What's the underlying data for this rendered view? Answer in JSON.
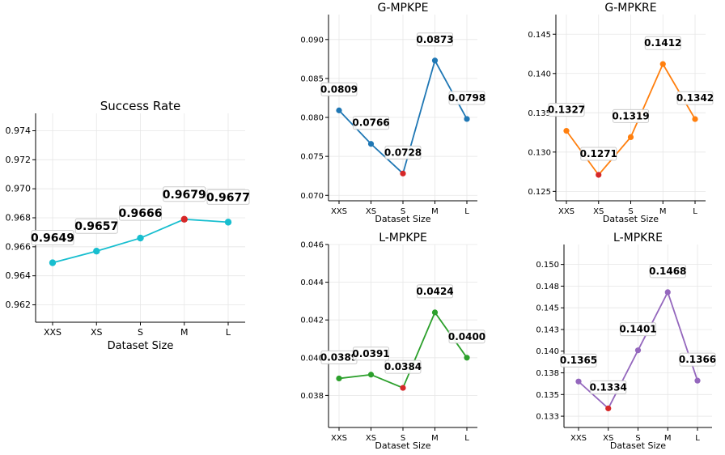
{
  "chart_data": [
    {
      "type": "line",
      "title": "Success Rate",
      "xlabel": "Dataset Size",
      "categories": [
        "XXS",
        "XS",
        "S",
        "M",
        "L"
      ],
      "values": [
        0.9649,
        0.9657,
        0.9666,
        0.9679,
        0.9677
      ],
      "value_labels": [
        "0.9649",
        "0.9657",
        "0.9666",
        "0.9679",
        "0.9677"
      ],
      "ylim": [
        0.9608,
        0.9752
      ],
      "yticks": [
        0.962,
        0.964,
        0.966,
        0.968,
        0.97,
        0.972,
        0.974
      ],
      "ytick_labels": [
        "0.962",
        "0.964",
        "0.966",
        "0.968",
        "0.970",
        "0.972",
        "0.974"
      ],
      "color": "#17becf",
      "highlight_color": "#d62728",
      "highlight_index": 3,
      "grid": true
    },
    {
      "type": "line",
      "title": "G-MPKPE",
      "xlabel": "Dataset Size",
      "categories": [
        "XXS",
        "XS",
        "S",
        "M",
        "L"
      ],
      "values": [
        0.0809,
        0.0766,
        0.0728,
        0.0873,
        0.0798
      ],
      "value_labels": [
        "0.0809",
        "0.0766",
        "0.0728",
        "0.0873",
        "0.0798"
      ],
      "ylim": [
        0.0693,
        0.0932
      ],
      "yticks": [
        0.07,
        0.075,
        0.08,
        0.085,
        0.09
      ],
      "ytick_labels": [
        "0.070",
        "0.075",
        "0.080",
        "0.085",
        "0.090"
      ],
      "color": "#1f77b4",
      "highlight_color": "#d62728",
      "highlight_index": 2,
      "grid": true
    },
    {
      "type": "line",
      "title": "G-MPKRE",
      "xlabel": "Dataset Size",
      "categories": [
        "XXS",
        "XS",
        "S",
        "M",
        "L"
      ],
      "values": [
        0.1327,
        0.1271,
        0.1319,
        0.1412,
        0.1342
      ],
      "value_labels": [
        "0.1327",
        "0.1271",
        "0.1319",
        "0.1412",
        "0.1342"
      ],
      "ylim": [
        0.1238,
        0.1475
      ],
      "yticks": [
        0.125,
        0.13,
        0.135,
        0.14,
        0.145
      ],
      "ytick_labels": [
        "0.125",
        "0.130",
        "0.135",
        "0.140",
        "0.145"
      ],
      "color": "#ff7f0e",
      "highlight_color": "#d62728",
      "highlight_index": 1,
      "grid": true
    },
    {
      "type": "line",
      "title": "L-MPKPE",
      "xlabel": "Dataset Size",
      "categories": [
        "XXS",
        "XS",
        "S",
        "M",
        "L"
      ],
      "values": [
        0.0389,
        0.0391,
        0.0384,
        0.0424,
        0.04
      ],
      "value_labels": [
        "0.0389",
        "0.0391",
        "0.0384",
        "0.0424",
        "0.0400"
      ],
      "ylim": [
        0.0363,
        0.046
      ],
      "yticks": [
        0.038,
        0.04,
        0.042,
        0.044,
        0.046
      ],
      "ytick_labels": [
        "0.038",
        "0.040",
        "0.042",
        "0.044",
        "0.046"
      ],
      "color": "#2ca02c",
      "highlight_color": "#d62728",
      "highlight_index": 2,
      "grid": true
    },
    {
      "type": "line",
      "title": "L-MPKRE",
      "xlabel": "Dataset Size",
      "categories": [
        "XXS",
        "XS",
        "S",
        "M",
        "L"
      ],
      "values": [
        0.1365,
        0.1334,
        0.1401,
        0.1468,
        0.1366
      ],
      "value_labels": [
        "0.1365",
        "0.1334",
        "0.1401",
        "0.1468",
        "0.1366"
      ],
      "ylim": [
        0.1312,
        0.1523
      ],
      "yticks": [
        0.1325,
        0.135,
        0.1375,
        0.14,
        0.1425,
        0.145,
        0.1475,
        0.15
      ],
      "ytick_labels": [
        "0.133",
        "0.135",
        "0.138",
        "0.140",
        "0.143",
        "0.145",
        "0.148",
        "0.150"
      ],
      "color": "#9467bd",
      "highlight_color": "#d62728",
      "highlight_index": 1,
      "grid": true
    }
  ]
}
